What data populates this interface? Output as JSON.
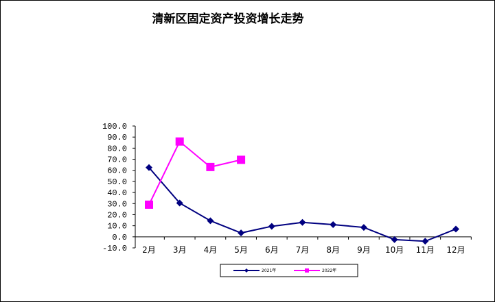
{
  "chart_data": {
    "type": "line",
    "title": "清新区固定资产投资增长走势",
    "categories": [
      "2月",
      "3月",
      "4月",
      "5月",
      "6月",
      "7月",
      "8月",
      "9月",
      "10月",
      "11月",
      "12月"
    ],
    "yticks": [
      "100.0",
      "90.0",
      "80.0",
      "70.0",
      "60.0",
      "50.0",
      "40.0",
      "30.0",
      "20.0",
      "10.0",
      "0.0",
      "-10.0"
    ],
    "ylim": [
      -10,
      100
    ],
    "grid": false,
    "legend_position": "bottom",
    "series": [
      {
        "name": "2021年",
        "color": "#000080",
        "marker": "diamond",
        "values": [
          62.5,
          30.5,
          14.5,
          3.5,
          9.5,
          13.0,
          11.0,
          8.5,
          -2.5,
          -4.0,
          7.0
        ]
      },
      {
        "name": "2022年",
        "color": "#ff00ff",
        "marker": "square",
        "values": [
          29.0,
          86.0,
          63.0,
          69.5,
          null,
          null,
          null,
          null,
          null,
          null,
          null
        ]
      }
    ]
  }
}
